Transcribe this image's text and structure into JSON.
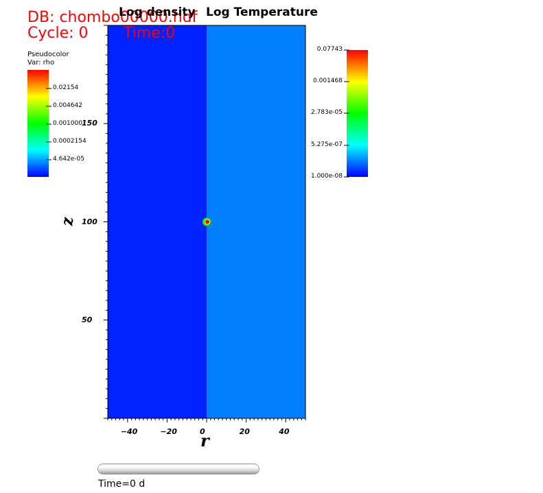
{
  "header": {
    "db_label": "DB: chombo00000.hdf",
    "cycle_label": "Cycle: 0",
    "time_label": "Time:0"
  },
  "titles": {
    "left": "Log density",
    "right": "Log Temperature"
  },
  "legend_left": {
    "plot_type": "Pseudocolor",
    "var": "Var: rho",
    "ticks": [
      "0.02154",
      "0.004642",
      "0.001000",
      "0.0002154",
      "4.642e-05"
    ]
  },
  "legend_right": {
    "ticks": [
      "0.07743",
      "0.001468",
      "2.783e-05",
      "5.275e-07",
      "1.000e-08"
    ]
  },
  "time_slider": {
    "label": "Time=0 d",
    "progress": 0.0
  },
  "chart_data": {
    "type": "heatmap",
    "xlabel": "r",
    "ylabel": "z",
    "xlim": [
      -50,
      50
    ],
    "ylim": [
      0,
      200
    ],
    "x_ticks": [
      -40,
      -20,
      0,
      20,
      40
    ],
    "y_ticks": [
      50,
      100,
      150
    ],
    "tick_labels_x": [
      "−40",
      "−20",
      "0",
      "20",
      "40"
    ],
    "tick_labels_y": [
      "50",
      "100",
      "150"
    ],
    "regions": [
      {
        "panel": "Log density",
        "x_range": [
          -50,
          0
        ],
        "color": "#0022ff"
      },
      {
        "panel": "Log Temperature",
        "x_range": [
          0,
          50
        ],
        "color": "#0080ff"
      }
    ],
    "feature": {
      "x": 0,
      "y": 100,
      "radius": 2,
      "description_colors": [
        "#ff0000",
        "#00ff00",
        "#ffff00"
      ]
    },
    "colorbar_colors": [
      "#ff0000",
      "#ffff00",
      "#00ff00",
      "#00ffff",
      "#0000ff"
    ]
  }
}
